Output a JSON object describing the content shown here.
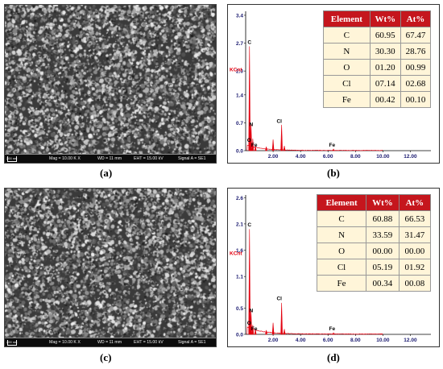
{
  "panels": [
    {
      "id": "a",
      "label": "(a)",
      "sem": {
        "scale_label": "200 nm",
        "mag": "Mag = 10.00 K X",
        "wd": "WD = 11 mm",
        "eht": "EHT = 15.00 kV",
        "signal": "Signal A = SE1"
      }
    },
    {
      "id": "b",
      "label": "(b)",
      "table": {
        "headers": [
          "Element",
          "Wt%",
          "At%"
        ],
        "rows": [
          [
            "C",
            "60.95",
            "67.47"
          ],
          [
            "N",
            "30.30",
            "28.76"
          ],
          [
            "O",
            "01.20",
            "00.99"
          ],
          [
            "Cl",
            "07.14",
            "02.68"
          ],
          [
            "Fe",
            "00.42",
            "00.10"
          ]
        ]
      }
    },
    {
      "id": "c",
      "label": "(c)",
      "sem": {
        "scale_label": "200 nm",
        "mag": "Mag = 10.00 K X",
        "wd": "WD = 11 mm",
        "eht": "EHT = 15.00 kV",
        "signal": "Signal A = SE1"
      }
    },
    {
      "id": "d",
      "label": "(d)",
      "table": {
        "headers": [
          "Element",
          "Wt%",
          "At%"
        ],
        "rows": [
          [
            "C",
            "60.88",
            "66.53"
          ],
          [
            "N",
            "33.59",
            "31.47"
          ],
          [
            "O",
            "00.00",
            "00.00"
          ],
          [
            "Cl",
            "05.19",
            "01.92"
          ],
          [
            "Fe",
            "00.34",
            "00.08"
          ]
        ]
      }
    }
  ],
  "chart_data": [
    {
      "type": "line",
      "panel": "b",
      "ylabel": "KCnt",
      "xlim": [
        0,
        13.5
      ],
      "ylim": [
        0,
        3.5
      ],
      "xticks": [
        "2.00",
        "4.00",
        "6.00",
        "8.00",
        "10.00",
        "12.00"
      ],
      "yticks": [
        "0.0",
        "0.7",
        "1.4",
        "2.0",
        "2.7",
        "3.4"
      ],
      "line_color": "#e3000f",
      "peaks": [
        {
          "label": "C",
          "x": 0.28,
          "y": 2.62
        },
        {
          "label": "N",
          "x": 0.39,
          "y": 0.68
        },
        {
          "label": "O",
          "x": 0.52,
          "y": 0.3
        },
        {
          "label": "Fe",
          "x": 0.71,
          "y": 0.12
        },
        {
          "label": "",
          "x": 1.5,
          "y": 0.1
        },
        {
          "label": "",
          "x": 2.0,
          "y": 0.28
        },
        {
          "label": "Cl",
          "x": 2.62,
          "y": 0.65
        },
        {
          "label": "",
          "x": 2.82,
          "y": 0.12
        },
        {
          "label": "Fe",
          "x": 6.4,
          "y": 0.04
        }
      ],
      "annotations": [
        {
          "text": "C",
          "x": 0.28,
          "y": 2.68
        },
        {
          "text": "N",
          "x": 0.4,
          "y": 0.62
        },
        {
          "text": "O",
          "x": 0.25,
          "y": 0.22
        },
        {
          "text": "Fe",
          "x": 0.63,
          "y": 0.1
        },
        {
          "text": "Cl",
          "x": 2.45,
          "y": 0.7
        },
        {
          "text": "Fe",
          "x": 6.3,
          "y": 0.1
        }
      ]
    },
    {
      "type": "line",
      "panel": "d",
      "ylabel": "KCnt",
      "xlim": [
        0,
        13.5
      ],
      "ylim": [
        0,
        2.65
      ],
      "xticks": [
        "2.00",
        "4.00",
        "6.00",
        "8.00",
        "10.00",
        "12.00"
      ],
      "yticks": [
        "0.0",
        "0.5",
        "1.1",
        "1.6",
        "2.1",
        "2.6"
      ],
      "line_color": "#e3000f",
      "peaks": [
        {
          "label": "C",
          "x": 0.28,
          "y": 2.0
        },
        {
          "label": "N",
          "x": 0.39,
          "y": 0.45
        },
        {
          "label": "O",
          "x": 0.52,
          "y": 0.18
        },
        {
          "label": "Fe",
          "x": 0.71,
          "y": 0.1
        },
        {
          "label": "",
          "x": 1.5,
          "y": 0.08
        },
        {
          "label": "",
          "x": 2.0,
          "y": 0.22
        },
        {
          "label": "Cl",
          "x": 2.62,
          "y": 0.6
        },
        {
          "label": "",
          "x": 2.82,
          "y": 0.1
        },
        {
          "label": "Fe",
          "x": 6.4,
          "y": 0.03
        }
      ],
      "annotations": [
        {
          "text": "C",
          "x": 0.28,
          "y": 2.05
        },
        {
          "text": "N",
          "x": 0.4,
          "y": 0.42
        },
        {
          "text": "O",
          "x": 0.25,
          "y": 0.18
        },
        {
          "text": "Fe",
          "x": 0.63,
          "y": 0.08
        },
        {
          "text": "Cl",
          "x": 2.45,
          "y": 0.65
        },
        {
          "text": "Fe",
          "x": 6.3,
          "y": 0.08
        }
      ]
    }
  ]
}
